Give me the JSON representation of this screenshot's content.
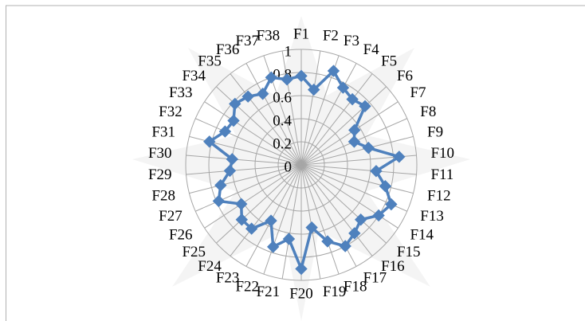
{
  "chart_data": {
    "type": "radar",
    "categories": [
      "F1",
      "F2",
      "F3",
      "F4",
      "F5",
      "F6",
      "F7",
      "F8",
      "F9",
      "F10",
      "F11",
      "F12",
      "F13",
      "F14",
      "F15",
      "F16",
      "F17",
      "F18",
      "F19",
      "F20",
      "F21",
      "F22",
      "F23",
      "F24",
      "F25",
      "F26",
      "F27",
      "F28",
      "F29",
      "F30",
      "F31",
      "F32",
      "F33",
      "F34",
      "F35",
      "F36",
      "F37",
      "F38"
    ],
    "values": [
      0.77,
      0.66,
      0.86,
      0.76,
      0.72,
      0.75,
      0.55,
      0.5,
      0.6,
      0.85,
      0.65,
      0.75,
      0.85,
      0.8,
      0.7,
      0.75,
      0.8,
      0.7,
      0.55,
      0.9,
      0.65,
      0.75,
      0.55,
      0.7,
      0.7,
      0.62,
      0.78,
      0.72,
      0.62,
      0.6,
      0.82,
      0.72,
      0.7,
      0.78,
      0.75,
      0.7,
      0.8,
      0.75
    ],
    "color": "#4f81bd",
    "ylim": [
      0,
      1
    ],
    "yticks": [
      0,
      0.2,
      0.4,
      0.6,
      0.8,
      1
    ],
    "grid": true
  }
}
